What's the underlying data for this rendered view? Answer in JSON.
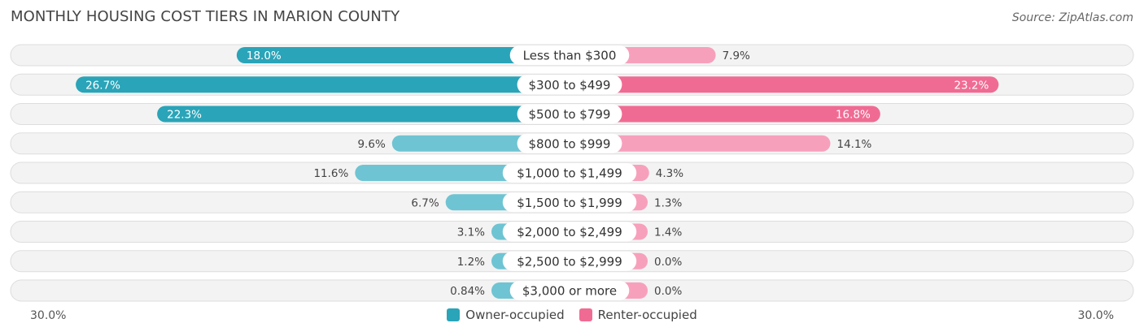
{
  "header": {
    "title": "MONTHLY HOUSING COST TIERS IN MARION COUNTY",
    "source": "Source: ZipAtlas.com"
  },
  "colors": {
    "owner_dark": "#2aa4b8",
    "owner_light": "#6ec4d2",
    "renter_dark": "#f06b93",
    "renter_light": "#f7a0bc"
  },
  "chart_data": {
    "type": "bar",
    "orientation": "horizontal-diverging",
    "title": "MONTHLY HOUSING COST TIERS IN MARION COUNTY",
    "categories": [
      "Less than $300",
      "$300 to $499",
      "$500 to $799",
      "$800 to $999",
      "$1,000 to $1,499",
      "$1,500 to $1,999",
      "$2,000 to $2,499",
      "$2,500 to $2,999",
      "$3,000 or more"
    ],
    "series": [
      {
        "name": "Owner-occupied",
        "side": "left",
        "values": [
          18.0,
          26.7,
          22.3,
          9.6,
          11.6,
          6.7,
          3.1,
          1.2,
          0.84
        ],
        "labels": [
          "18.0%",
          "26.7%",
          "22.3%",
          "9.6%",
          "11.6%",
          "6.7%",
          "3.1%",
          "1.2%",
          "0.84%"
        ]
      },
      {
        "name": "Renter-occupied",
        "side": "right",
        "values": [
          7.9,
          23.2,
          16.8,
          14.1,
          4.3,
          1.3,
          1.4,
          0.0,
          0.0
        ],
        "labels": [
          "7.9%",
          "23.2%",
          "16.8%",
          "14.1%",
          "4.3%",
          "1.3%",
          "1.4%",
          "0.0%",
          "0.0%"
        ]
      }
    ],
    "xlim": [
      -30,
      30
    ],
    "axis_labels": {
      "left": "30.0%",
      "right": "30.0%"
    },
    "legend": [
      "Owner-occupied",
      "Renter-occupied"
    ],
    "legend_position": "bottom-center"
  }
}
